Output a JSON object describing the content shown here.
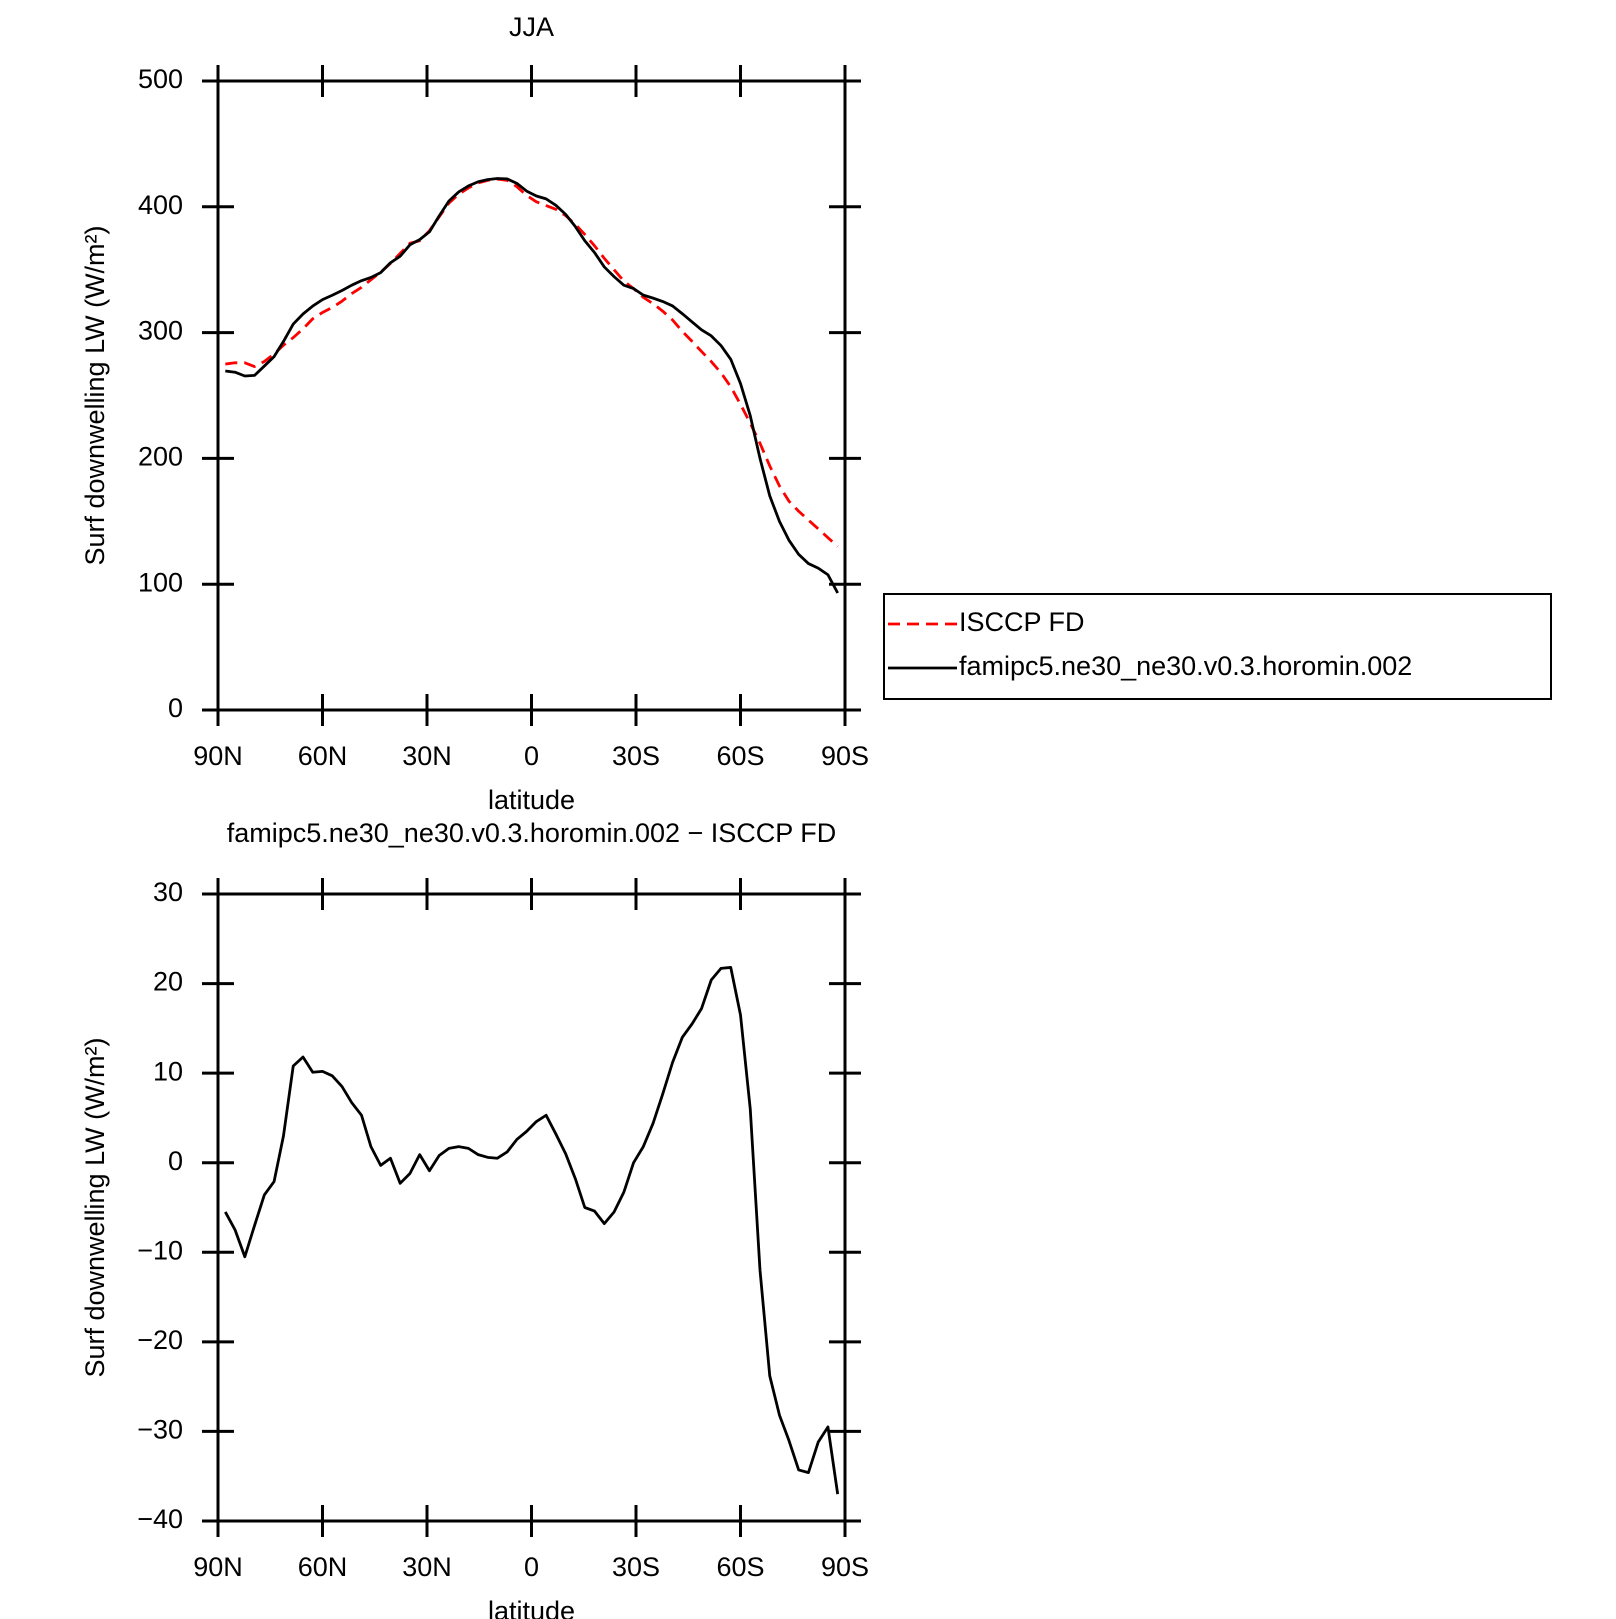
{
  "chart_data": [
    {
      "type": "line",
      "title": "JJA",
      "xlabel": "latitude",
      "ylabel": "Surf downwelling LW (W/m²)",
      "x": [
        87.9,
        85.1,
        82.3,
        79.5,
        76.7,
        73.9,
        71.2,
        68.4,
        65.6,
        62.8,
        60.0,
        57.2,
        54.4,
        51.6,
        48.8,
        46.1,
        43.3,
        40.5,
        37.7,
        34.9,
        32.1,
        29.3,
        26.5,
        23.7,
        20.9,
        18.1,
        15.3,
        12.6,
        9.8,
        7.0,
        4.2,
        1.4,
        -1.4,
        -4.2,
        -7.0,
        -9.8,
        -12.6,
        -15.3,
        -18.1,
        -20.9,
        -23.7,
        -26.5,
        -29.3,
        -32.1,
        -34.9,
        -37.7,
        -40.5,
        -43.3,
        -46.1,
        -48.8,
        -51.6,
        -54.4,
        -57.2,
        -60.0,
        -62.8,
        -65.6,
        -68.4,
        -71.2,
        -73.9,
        -76.7,
        -79.5,
        -82.3,
        -85.1,
        -87.9
      ],
      "series": [
        {
          "name": "ISCCP FD",
          "color": "#ff0000",
          "dash": "dashed",
          "values": [
            275,
            276,
            276,
            273,
            277,
            283,
            290,
            296,
            303,
            311,
            316,
            320,
            325,
            331,
            336,
            342,
            348,
            355,
            363,
            371,
            373,
            381,
            392,
            403,
            410,
            415,
            419,
            421,
            422,
            421,
            416,
            409,
            404,
            401,
            398,
            393,
            386,
            378,
            369,
            359,
            350,
            341,
            335,
            328,
            323,
            317,
            310,
            301,
            293,
            285,
            277,
            268,
            257,
            243,
            228,
            212,
            194,
            178,
            166,
            158,
            151,
            144,
            137,
            130
          ]
        },
        {
          "name": "famipc5.ne30_ne30.v0.3.horomin.002",
          "color": "#000000",
          "dash": "solid",
          "values": [
            269.5,
            268.5,
            265.5,
            266,
            273.4,
            280.9,
            293,
            306.8,
            314.8,
            321.1,
            326.2,
            329.7,
            333.5,
            337.7,
            341.3,
            343.8,
            347.7,
            355.5,
            360.7,
            369.8,
            373.9,
            380.1,
            392.8,
            404.6,
            411.8,
            416.6,
            419.9,
            421.6,
            422.5,
            422.2,
            418.6,
            412.5,
            408.6,
            406.3,
            401.2,
            394,
            384.2,
            373,
            363.6,
            352.2,
            344.5,
            337.7,
            335,
            329.8,
            327.4,
            324.7,
            321.2,
            315,
            308.5,
            302.2,
            297.4,
            289.7,
            278.8,
            259.5,
            234,
            200,
            170.2,
            149.8,
            135,
            123.7,
            116.4,
            112.8,
            107.5,
            93
          ]
        }
      ],
      "xlim": [
        90,
        -90
      ],
      "xticks": [
        {
          "value": 90,
          "label": "90N"
        },
        {
          "value": 60,
          "label": "60N"
        },
        {
          "value": 30,
          "label": "30N"
        },
        0,
        {
          "value": -30,
          "label": "30S"
        },
        {
          "value": -60,
          "label": "60S"
        },
        {
          "value": -90,
          "label": "90S"
        }
      ],
      "ylim": [
        0,
        500
      ],
      "yticks": [
        0,
        100,
        200,
        300,
        400,
        500
      ],
      "legend": "outside-right"
    },
    {
      "type": "line",
      "title": "famipc5.ne30_ne30.v0.3.horomin.002 − ISCCP FD",
      "xlabel": "latitude",
      "ylabel": "Surf downwelling LW (W/m²)",
      "x": [
        87.9,
        85.1,
        82.3,
        79.5,
        76.7,
        73.9,
        71.2,
        68.4,
        65.6,
        62.8,
        60.0,
        57.2,
        54.4,
        51.6,
        48.8,
        46.1,
        43.3,
        40.5,
        37.7,
        34.9,
        32.1,
        29.3,
        26.5,
        23.7,
        20.9,
        18.1,
        15.3,
        12.6,
        9.8,
        7.0,
        4.2,
        1.4,
        -1.4,
        -4.2,
        -7.0,
        -9.8,
        -12.6,
        -15.3,
        -18.1,
        -20.9,
        -23.7,
        -26.5,
        -29.3,
        -32.1,
        -34.9,
        -37.7,
        -40.5,
        -43.3,
        -46.1,
        -48.8,
        -51.6,
        -54.4,
        -57.2,
        -60.0,
        -62.8,
        -65.6,
        -68.4,
        -71.2,
        -73.9,
        -76.7,
        -79.5,
        -82.3,
        -85.1,
        -87.9
      ],
      "series": [
        {
          "color": "#000000",
          "dash": "solid",
          "values": [
            -5.5,
            -7.5,
            -10.5,
            -7,
            -3.6,
            -2.1,
            3,
            10.8,
            11.8,
            10.1,
            10.2,
            9.7,
            8.5,
            6.7,
            5.3,
            1.8,
            -0.3,
            0.5,
            -2.3,
            -1.2,
            0.9,
            -0.9,
            0.8,
            1.6,
            1.8,
            1.6,
            0.9,
            0.6,
            0.5,
            1.2,
            2.6,
            3.5,
            4.6,
            5.3,
            3.2,
            1.0,
            -1.8,
            -5.0,
            -5.4,
            -6.8,
            -5.5,
            -3.3,
            0,
            1.8,
            4.4,
            7.7,
            11.2,
            14,
            15.5,
            17.2,
            20.4,
            21.7,
            21.8,
            16.5,
            6,
            -12,
            -23.8,
            -28.2,
            -31,
            -34.3,
            -34.6,
            -31.2,
            -29.5,
            -37
          ]
        }
      ],
      "xlim": [
        90,
        -90
      ],
      "xticks": [
        {
          "value": 90,
          "label": "90N"
        },
        {
          "value": 60,
          "label": "60N"
        },
        {
          "value": 30,
          "label": "30N"
        },
        0,
        {
          "value": -30,
          "label": "30S"
        },
        {
          "value": -60,
          "label": "60S"
        },
        {
          "value": -90,
          "label": "90S"
        }
      ],
      "ylim": [
        -40,
        30
      ],
      "yticks": [
        {
          "value": -40,
          "label": "−40"
        },
        {
          "value": -30,
          "label": "−30"
        },
        {
          "value": -20,
          "label": "−20"
        },
        {
          "value": -10,
          "label": "−10"
        },
        0,
        10,
        20,
        30
      ]
    }
  ]
}
